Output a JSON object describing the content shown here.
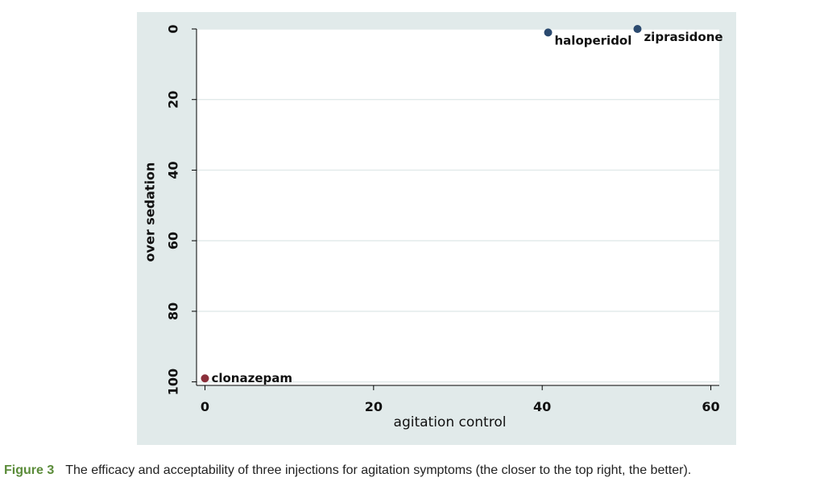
{
  "chart_data": {
    "type": "scatter",
    "title": "",
    "xlabel": "agitation control",
    "ylabel": "over sedation",
    "xlim": [
      -1,
      61
    ],
    "ylim": [
      0,
      101
    ],
    "y_reversed": true,
    "xticks": [
      0,
      20,
      40,
      60
    ],
    "yticks": [
      0,
      20,
      40,
      60,
      80,
      100
    ],
    "grid": true,
    "points": [
      {
        "label": "haloperidol",
        "x": 40.7,
        "y": 1,
        "color": "#2b4a6f"
      },
      {
        "label": "ziprasidone",
        "x": 51.3,
        "y": 0,
        "color": "#2b4a6f"
      },
      {
        "label": "clonazepam",
        "x": 0,
        "y": 99,
        "color": "#8b2f3a"
      }
    ],
    "colors": {
      "panel_bg": "#e1eaea",
      "plot_bg": "#ffffff",
      "grid": "#e1eaea"
    }
  },
  "caption": {
    "label": "Figure 3",
    "text": "The efficacy and acceptability of three injections for agitation symptoms (the closer to the top right, the better)."
  }
}
